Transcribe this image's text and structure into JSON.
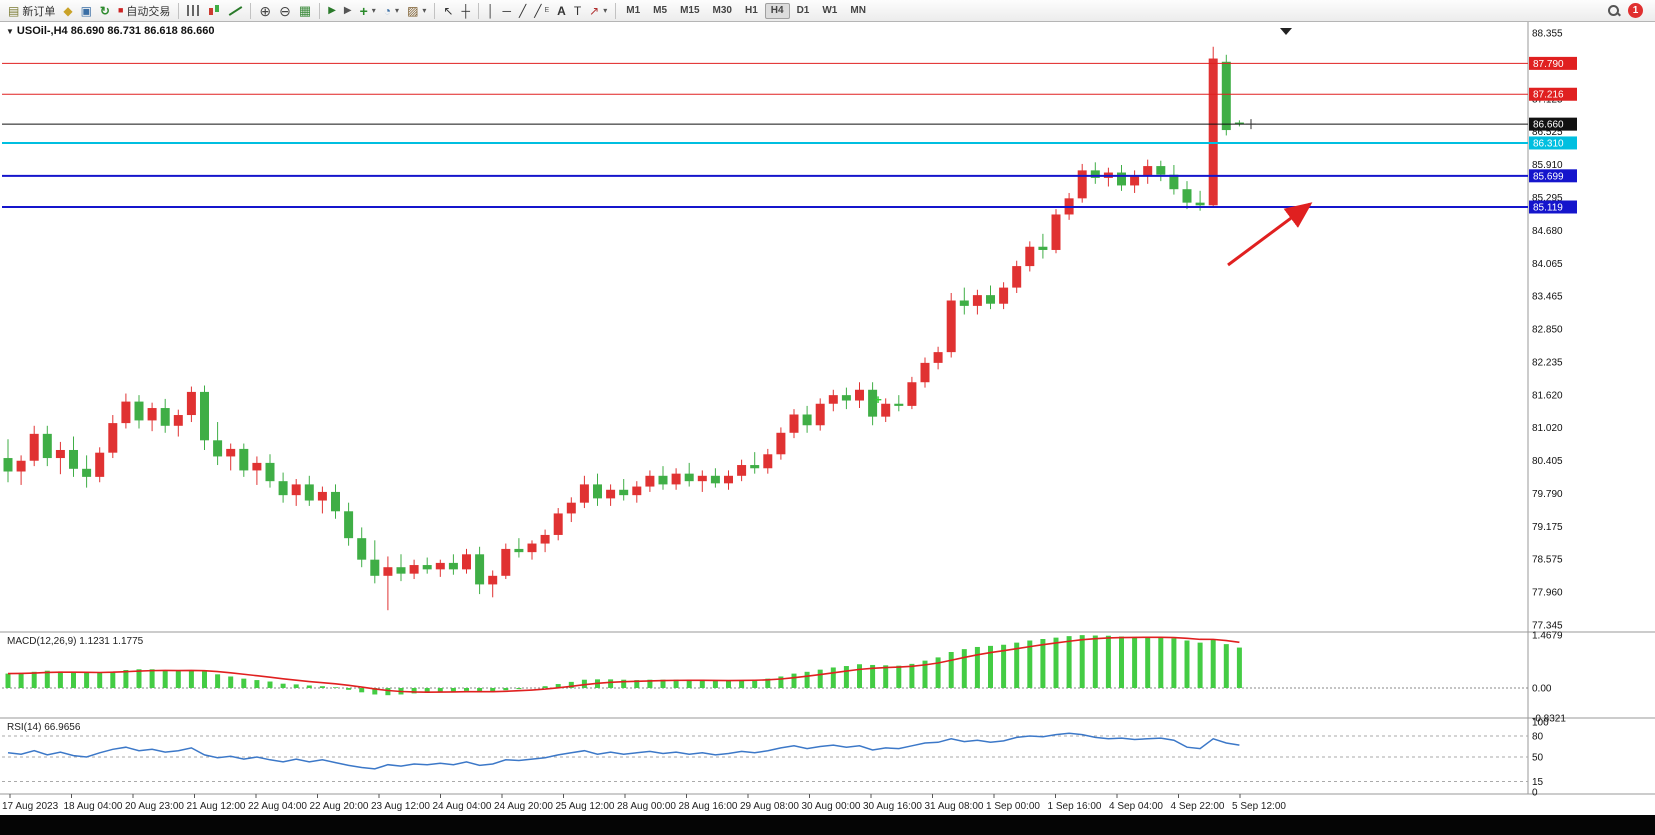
{
  "toolbar": {
    "new_order_label": "新订单",
    "autotrading_label": "自动交易",
    "timeframes": [
      "M1",
      "M5",
      "M15",
      "M30",
      "H1",
      "H4",
      "D1",
      "W1",
      "MN"
    ],
    "active_timeframe": "H4",
    "notification_count": "1",
    "icons": {
      "new_order": "▤",
      "quotes_window": "◆",
      "charts_window": "▣",
      "refresh": "↻",
      "autotrading_dot": "■",
      "zoom_in": "⊕",
      "zoom_out": "⊖",
      "grid": "▦",
      "auto_scroll": "▶",
      "chart_shift": "▶",
      "indicators": "+",
      "periods": "◔",
      "templates": "▨",
      "cursor": "↖",
      "crosshair": "┼",
      "vline": "│",
      "hline": "─",
      "trendline": "╱",
      "channel": "╱",
      "channel_sub": "E",
      "text_tool": "A",
      "label_tool": "T",
      "arrows_tool": "↗",
      "caret": "▾"
    }
  },
  "chart": {
    "title": "USOil-,H4 86.690 86.731 86.618 86.660",
    "macd_label": "MACD(12,26,9) 1.1231 1.1775",
    "rsi_label": "RSI(14) 66.9656"
  },
  "chart_data": {
    "type": "candlestick",
    "symbol": "USOil-",
    "period": "H4",
    "current_bar": {
      "open": 86.69,
      "high": 86.731,
      "low": 86.618,
      "close": 86.66
    },
    "main": {
      "up_color": "#e03232",
      "down_color": "#3fae46",
      "ylim": [
        77.345,
        88.355
      ],
      "axis_labels": [
        "88.355",
        "87.125",
        "86.525",
        "85.910",
        "85.295",
        "84.680",
        "84.065",
        "83.465",
        "82.850",
        "82.235",
        "81.620",
        "81.020",
        "80.405",
        "79.790",
        "79.175",
        "78.575",
        "77.960",
        "77.345"
      ],
      "lines": [
        {
          "price": 87.79,
          "color": "#e02020",
          "width": 1,
          "label": "87.790",
          "bg": "#e02020"
        },
        {
          "price": 87.216,
          "color": "#e02020",
          "width": 1,
          "label": "87.216",
          "bg": "#e02020"
        },
        {
          "price": 86.66,
          "color": "#111111",
          "width": 1,
          "label": "86.660",
          "bg": "#111111"
        },
        {
          "price": 86.31,
          "color": "#00bfe0",
          "width": 2,
          "label": "86.310",
          "bg": "#00bfe0"
        },
        {
          "price": 85.699,
          "color": "#1515cc",
          "width": 2,
          "label": "85.699",
          "bg": "#1515cc"
        },
        {
          "price": 85.119,
          "color": "#1515cc",
          "width": 2,
          "label": "85.119",
          "bg": "#1515cc"
        }
      ],
      "candles": [
        [
          80.45,
          80.8,
          80.0,
          80.2
        ],
        [
          80.2,
          80.5,
          79.95,
          80.4
        ],
        [
          80.4,
          81.05,
          80.3,
          80.9
        ],
        [
          80.9,
          81.05,
          80.3,
          80.45
        ],
        [
          80.45,
          80.75,
          80.15,
          80.6
        ],
        [
          80.6,
          80.85,
          80.1,
          80.25
        ],
        [
          80.25,
          80.5,
          79.9,
          80.1
        ],
        [
          80.1,
          80.65,
          80.0,
          80.55
        ],
        [
          80.55,
          81.25,
          80.45,
          81.1
        ],
        [
          81.1,
          81.65,
          81.0,
          81.5
        ],
        [
          81.5,
          81.62,
          81.0,
          81.15
        ],
        [
          81.15,
          81.48,
          80.95,
          81.38
        ],
        [
          81.38,
          81.55,
          80.92,
          81.05
        ],
        [
          81.05,
          81.35,
          80.85,
          81.25
        ],
        [
          81.25,
          81.78,
          81.12,
          81.68
        ],
        [
          81.68,
          81.8,
          80.6,
          80.78
        ],
        [
          80.78,
          81.12,
          80.32,
          80.48
        ],
        [
          80.48,
          80.72,
          80.22,
          80.62
        ],
        [
          80.62,
          80.72,
          80.1,
          80.22
        ],
        [
          80.22,
          80.48,
          79.95,
          80.36
        ],
        [
          80.36,
          80.52,
          79.9,
          80.02
        ],
        [
          80.02,
          80.18,
          79.62,
          79.76
        ],
        [
          79.76,
          80.06,
          79.56,
          79.96
        ],
        [
          79.96,
          80.12,
          79.56,
          79.66
        ],
        [
          79.66,
          79.92,
          79.42,
          79.82
        ],
        [
          79.82,
          79.96,
          79.32,
          79.46
        ],
        [
          79.46,
          79.62,
          78.82,
          78.96
        ],
        [
          78.96,
          79.16,
          78.42,
          78.56
        ],
        [
          78.56,
          78.92,
          78.12,
          78.26
        ],
        [
          78.26,
          78.62,
          77.62,
          78.42
        ],
        [
          78.42,
          78.66,
          78.16,
          78.3
        ],
        [
          78.3,
          78.56,
          78.2,
          78.46
        ],
        [
          78.46,
          78.6,
          78.3,
          78.38
        ],
        [
          78.38,
          78.56,
          78.24,
          78.5
        ],
        [
          78.5,
          78.66,
          78.28,
          78.38
        ],
        [
          78.38,
          78.76,
          78.3,
          78.66
        ],
        [
          78.66,
          78.8,
          77.92,
          78.1
        ],
        [
          78.1,
          78.36,
          77.86,
          78.26
        ],
        [
          78.26,
          78.86,
          78.2,
          78.76
        ],
        [
          78.76,
          78.96,
          78.6,
          78.7
        ],
        [
          78.7,
          78.92,
          78.56,
          78.86
        ],
        [
          78.86,
          79.12,
          78.7,
          79.02
        ],
        [
          79.02,
          79.52,
          78.92,
          79.42
        ],
        [
          79.42,
          79.72,
          79.26,
          79.62
        ],
        [
          79.62,
          80.12,
          79.52,
          79.96
        ],
        [
          79.96,
          80.16,
          79.56,
          79.7
        ],
        [
          79.7,
          79.96,
          79.56,
          79.86
        ],
        [
          79.86,
          80.06,
          79.66,
          79.76
        ],
        [
          79.76,
          80.02,
          79.62,
          79.92
        ],
        [
          79.92,
          80.22,
          79.82,
          80.12
        ],
        [
          80.12,
          80.3,
          79.86,
          79.96
        ],
        [
          79.96,
          80.26,
          79.86,
          80.16
        ],
        [
          80.16,
          80.36,
          79.92,
          80.02
        ],
        [
          80.02,
          80.22,
          79.82,
          80.12
        ],
        [
          80.12,
          80.26,
          79.9,
          79.98
        ],
        [
          79.98,
          80.22,
          79.86,
          80.12
        ],
        [
          80.12,
          80.42,
          80.02,
          80.32
        ],
        [
          80.32,
          80.56,
          80.16,
          80.26
        ],
        [
          80.26,
          80.62,
          80.16,
          80.52
        ],
        [
          80.52,
          81.02,
          80.42,
          80.92
        ],
        [
          80.92,
          81.36,
          80.82,
          81.26
        ],
        [
          81.26,
          81.42,
          80.92,
          81.06
        ],
        [
          81.06,
          81.56,
          80.96,
          81.46
        ],
        [
          81.46,
          81.72,
          81.32,
          81.62
        ],
        [
          81.62,
          81.76,
          81.36,
          81.52
        ],
        [
          81.52,
          81.86,
          81.38,
          81.72
        ],
        [
          81.72,
          81.86,
          81.06,
          81.22
        ],
        [
          81.22,
          81.56,
          81.12,
          81.46
        ],
        [
          81.46,
          81.62,
          81.32,
          81.42
        ],
        [
          81.42,
          81.96,
          81.36,
          81.86
        ],
        [
          81.86,
          82.32,
          81.76,
          82.22
        ],
        [
          82.22,
          82.52,
          82.1,
          82.42
        ],
        [
          82.42,
          83.52,
          82.32,
          83.38
        ],
        [
          83.38,
          83.62,
          83.12,
          83.28
        ],
        [
          83.28,
          83.58,
          83.12,
          83.48
        ],
        [
          83.48,
          83.66,
          83.22,
          83.32
        ],
        [
          83.32,
          83.72,
          83.22,
          83.62
        ],
        [
          83.62,
          84.12,
          83.52,
          84.02
        ],
        [
          84.02,
          84.48,
          83.92,
          84.38
        ],
        [
          84.38,
          84.62,
          84.16,
          84.32
        ],
        [
          84.32,
          85.08,
          84.26,
          84.98
        ],
        [
          84.98,
          85.38,
          84.88,
          85.28
        ],
        [
          85.28,
          85.92,
          85.2,
          85.8
        ],
        [
          85.8,
          85.95,
          85.55,
          85.66
        ],
        [
          85.66,
          85.85,
          85.5,
          85.76
        ],
        [
          85.76,
          85.9,
          85.42,
          85.52
        ],
        [
          85.52,
          85.8,
          85.38,
          85.7
        ],
        [
          85.7,
          86.0,
          85.55,
          85.88
        ],
        [
          85.88,
          85.98,
          85.6,
          85.72
        ],
        [
          85.72,
          85.9,
          85.35,
          85.45
        ],
        [
          85.45,
          85.6,
          85.08,
          85.2
        ],
        [
          85.2,
          85.42,
          85.05,
          85.15
        ],
        [
          85.15,
          88.1,
          85.1,
          87.88
        ],
        [
          87.82,
          87.95,
          86.45,
          86.55
        ],
        [
          86.69,
          86.731,
          86.618,
          86.66
        ]
      ]
    },
    "macd": {
      "params": "12,26,9",
      "main_last": 1.1231,
      "signal_last": 1.1775,
      "bar_color": "#44cc44",
      "signal_color": "#e02020",
      "axis_labels": [
        "1.4679",
        "0.00",
        "-0.8321"
      ],
      "histogram": [
        0.4,
        0.42,
        0.45,
        0.48,
        0.46,
        0.44,
        0.42,
        0.42,
        0.46,
        0.5,
        0.52,
        0.52,
        0.5,
        0.48,
        0.5,
        0.46,
        0.38,
        0.32,
        0.26,
        0.22,
        0.18,
        0.12,
        0.1,
        0.07,
        0.05,
        0.02,
        -0.05,
        -0.12,
        -0.18,
        -0.2,
        -0.18,
        -0.15,
        -0.13,
        -0.11,
        -0.1,
        -0.08,
        -0.1,
        -0.1,
        -0.06,
        -0.03,
        0.0,
        0.05,
        0.11,
        0.17,
        0.23,
        0.24,
        0.24,
        0.23,
        0.22,
        0.23,
        0.23,
        0.23,
        0.22,
        0.21,
        0.2,
        0.2,
        0.22,
        0.23,
        0.26,
        0.32,
        0.4,
        0.45,
        0.51,
        0.57,
        0.61,
        0.66,
        0.64,
        0.63,
        0.62,
        0.67,
        0.76,
        0.85,
        1.0,
        1.08,
        1.14,
        1.17,
        1.2,
        1.26,
        1.32,
        1.36,
        1.4,
        1.44,
        1.4679,
        1.46,
        1.45,
        1.43,
        1.42,
        1.42,
        1.41,
        1.38,
        1.32,
        1.26,
        1.35,
        1.22,
        1.1231
      ]
    },
    "rsi": {
      "period": 14,
      "last": 66.9656,
      "line_color": "#3c78c8",
      "levels": [
        80,
        50,
        15
      ],
      "axis_labels": [
        "100",
        "80",
        "50",
        "15",
        "0"
      ],
      "values": [
        56,
        54,
        59,
        53,
        57,
        52,
        50,
        56,
        61,
        64,
        59,
        61,
        57,
        59,
        63,
        53,
        49,
        51,
        47,
        50,
        46,
        43,
        47,
        43,
        46,
        42,
        38,
        35,
        33,
        39,
        37,
        40,
        39,
        41,
        39,
        43,
        38,
        40,
        46,
        45,
        47,
        49,
        53,
        56,
        59,
        54,
        57,
        54,
        56,
        58,
        55,
        57,
        54,
        56,
        53,
        55,
        58,
        56,
        59,
        63,
        66,
        62,
        65,
        67,
        64,
        66,
        60,
        63,
        62,
        66,
        70,
        71,
        76,
        72,
        74,
        71,
        73,
        78,
        80,
        79,
        82,
        84,
        82,
        78,
        76,
        77,
        75,
        76,
        77,
        74,
        64,
        62,
        76,
        70,
        66.9656
      ]
    },
    "time_labels": [
      "17 Aug 2023",
      "18 Aug 04:00",
      "20 Aug 23:00",
      "21 Aug 12:00",
      "22 Aug 04:00",
      "22 Aug 20:00",
      "23 Aug 12:00",
      "24 Aug 04:00",
      "24 Aug 20:00",
      "25 Aug 12:00",
      "28 Aug 00:00",
      "28 Aug 16:00",
      "29 Aug 08:00",
      "30 Aug 00:00",
      "30 Aug 16:00",
      "31 Aug 08:00",
      "1 Sep 00:00",
      "1 Sep 16:00",
      "4 Sep 04:00",
      "4 Sep 22:00",
      "5 Sep 12:00"
    ],
    "annotations": {
      "arrow": {
        "from": [
          1228,
          265
        ],
        "to": [
          1310,
          204
        ],
        "color": "#e02020"
      },
      "plus_marker": {
        "x": 878,
        "y": 404,
        "color": "#33cc33"
      }
    }
  }
}
